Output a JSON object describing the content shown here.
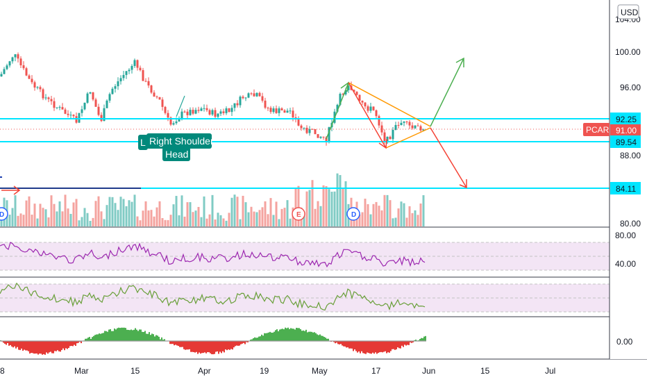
{
  "currency": "USD",
  "symbol": "PCAR",
  "colors": {
    "up": "#26a69a",
    "down": "#ef5350",
    "level_line": "#00e5ff",
    "channel": "#ff9800",
    "arrow_up": "#4caf50",
    "arrow_down": "#f44336",
    "pattern_label_bg": "#00897b",
    "rsi_line": "#9c27b0",
    "osc_line": "#689f38",
    "osc_band": "#f3e5f5",
    "symbol_badge": "#ef5350"
  },
  "price_axis": {
    "ticks": [
      "100.00",
      "96.00",
      "88.00",
      "80.00"
    ],
    "top_tick_partial": "104.00",
    "badges": [
      {
        "name": "level-92-25",
        "text": "92.25"
      },
      {
        "name": "price-91-00",
        "text": "91.00"
      },
      {
        "name": "level-89-54",
        "text": "89.54"
      },
      {
        "name": "level-84-11",
        "text": "84.11"
      }
    ]
  },
  "date_axis": [
    "8",
    "Mar",
    "15",
    "Apr",
    "19",
    "May",
    "17",
    "Jun",
    "15",
    "Jul"
  ],
  "rsi_axis": [
    "80.00",
    "40.00"
  ],
  "macd_axis": [
    "0.00"
  ],
  "pattern_labels": [
    {
      "name": "pattern-label-left-shoulder",
      "text": "L"
    },
    {
      "name": "pattern-label-right-shoulder",
      "text": "Right Shoulder"
    },
    {
      "name": "pattern-label-head",
      "text": "Head"
    }
  ],
  "events": [
    {
      "name": "event-dividend-1",
      "text": "D"
    },
    {
      "name": "event-earnings",
      "text": "E"
    },
    {
      "name": "event-dividend-2",
      "text": "D"
    }
  ],
  "chart_data": {
    "type": "candlestick",
    "price_levels": [
      92.25,
      89.54,
      84.11
    ],
    "last_price": 91.0,
    "y_ticks": [
      80.0,
      88.0,
      96.0,
      100.0
    ]
  }
}
